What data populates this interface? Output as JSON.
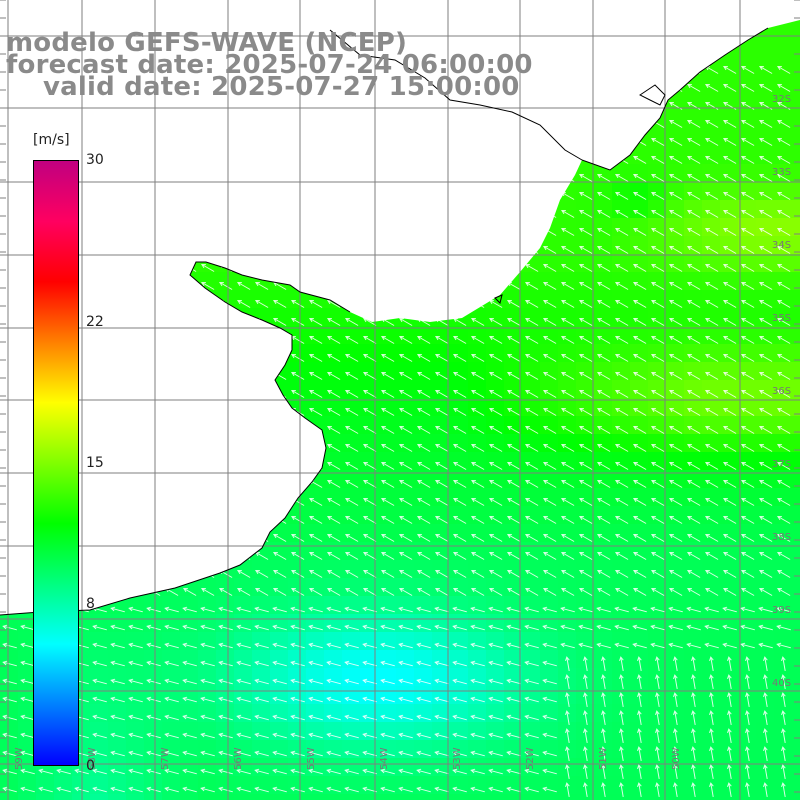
{
  "title": {
    "line1": "modelo GEFS-WAVE (NCEP)",
    "line2": "forecast date: 2025-07-24 06:00:00",
    "line3": "    valid date: 2025-07-27 15:00:00"
  },
  "colorbar": {
    "unit": "[m/s]",
    "min": 0,
    "max": 30,
    "ticks": [
      "30",
      "22",
      "15",
      "8",
      "0"
    ],
    "tick_values": [
      30,
      22,
      15,
      8,
      0
    ],
    "colors": [
      "#0000ff",
      "#0080ff",
      "#00ffff",
      "#00ff80",
      "#00ff00",
      "#80ff00",
      "#ffff00",
      "#ff8000",
      "#ff0000",
      "#ff0060",
      "#c00080"
    ]
  },
  "lat_labels": [
    "32S",
    "33S",
    "34S",
    "35S",
    "36S",
    "37S",
    "38S",
    "39S",
    "40S"
  ],
  "lon_labels": [
    "59W",
    "58W",
    "57W",
    "56W",
    "55W",
    "54W",
    "53W",
    "52W",
    "51W",
    "50W"
  ],
  "map": {
    "land_color": "#ffffff",
    "grid_color": "#7f7f7f",
    "coast_color": "#000000",
    "arrow_color": "#ffffff"
  },
  "chart_data": {
    "type": "heatmap",
    "variable": "wind speed",
    "units": "m/s",
    "field_description_levels": {
      "open_ocean_north_east": 13,
      "plume_near_35S": 16,
      "south_east": 10,
      "south_west_low": 6
    }
  }
}
